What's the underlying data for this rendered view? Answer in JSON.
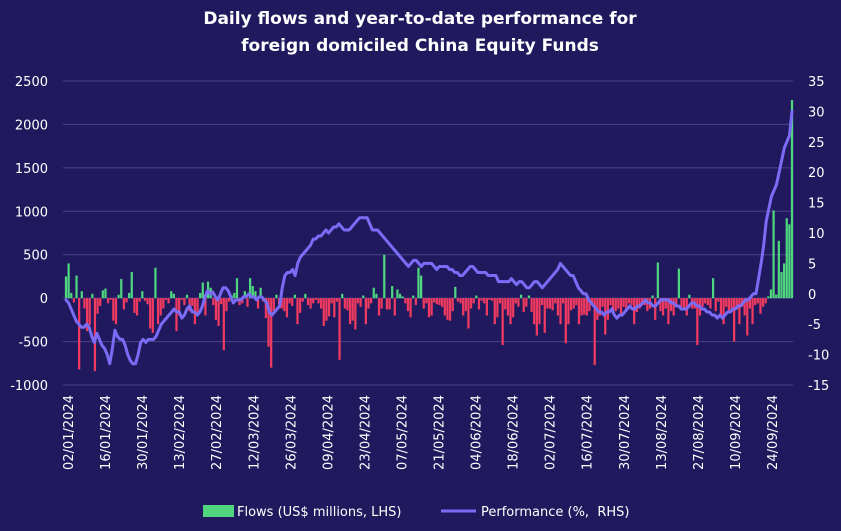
{
  "chart_data": {
    "type": "bar+line",
    "title_lines": [
      "Daily flows and year-to-date performance for",
      "foreign domiciled China Equity Funds"
    ],
    "x_tick_labels": [
      "02/01/2024",
      "16/01/2024",
      "30/01/2024",
      "13/02/2024",
      "27/02/2024",
      "12/03/2024",
      "26/03/2024",
      "09/04/2024",
      "23/04/2024",
      "07/05/2024",
      "21/05/2024",
      "04/06/2024",
      "18/06/2024",
      "02/07/2024",
      "16/07/2024",
      "30/07/2024",
      "13/08/2024",
      "27/08/2024",
      "10/09/2024",
      "24/09/2024"
    ],
    "y_left": {
      "min": -1000,
      "max": 2500,
      "ticks": [
        -1000,
        -500,
        0,
        500,
        1000,
        1500,
        2000,
        2500
      ]
    },
    "y_right": {
      "min": -15,
      "max": 35,
      "ticks": [
        -15,
        -10,
        -5,
        0,
        5,
        10,
        15,
        20,
        25,
        30,
        35
      ]
    },
    "grid": "horizontal",
    "legend_position": "bottom",
    "colors": {
      "background": "#21195e",
      "flows_positive": "#4fd67f",
      "flows_negative": "#f03a5f",
      "performance": "#7b6cf6",
      "grid": "#4a4385"
    },
    "series": [
      {
        "name": "Flows (US$ millions, LHS)",
        "type": "bar",
        "axis": "left",
        "x_start": "2024-01-02",
        "x_interval": "business day",
        "values": [
          250,
          400,
          60,
          -50,
          260,
          -820,
          80,
          -120,
          -380,
          -310,
          50,
          -840,
          -180,
          -90,
          90,
          110,
          -60,
          -20,
          -260,
          -300,
          40,
          220,
          -130,
          -50,
          60,
          300,
          -170,
          -200,
          -40,
          80,
          -30,
          -70,
          -350,
          -400,
          350,
          -300,
          -200,
          -120,
          -20,
          -60,
          80,
          50,
          -380,
          -200,
          -20,
          -80,
          40,
          -150,
          -90,
          -300,
          -180,
          60,
          180,
          -200,
          190,
          120,
          -80,
          -250,
          -320,
          -70,
          -600,
          -150,
          -40,
          30,
          60,
          230,
          -80,
          -60,
          80,
          -100,
          230,
          140,
          80,
          -120,
          120,
          -40,
          -230,
          -560,
          -800,
          -150,
          40,
          -70,
          -120,
          -150,
          -220,
          -60,
          -90,
          40,
          -300,
          -170,
          -40,
          50,
          -80,
          -120,
          -60,
          -20,
          -60,
          -120,
          -320,
          -260,
          -210,
          -60,
          -220,
          -40,
          -710,
          50,
          -120,
          -140,
          -300,
          -260,
          -360,
          -60,
          -100,
          30,
          -300,
          -120,
          -60,
          120,
          50,
          -200,
          -120,
          500,
          -130,
          -130,
          140,
          -200,
          100,
          50,
          20,
          -60,
          -150,
          -220,
          30,
          -80,
          350,
          260,
          -120,
          -60,
          -220,
          -200,
          -50,
          -70,
          -80,
          -100,
          -200,
          -250,
          -260,
          -150,
          130,
          -40,
          -60,
          -200,
          -150,
          -350,
          -120,
          -60,
          30,
          -130,
          -30,
          -60,
          -200,
          -20,
          -30,
          -300,
          -220,
          -60,
          -540,
          -130,
          -200,
          -300,
          -220,
          -60,
          -100,
          40,
          -160,
          -100,
          30,
          -160,
          -300,
          -430,
          -300,
          -80,
          -400,
          -120,
          -120,
          -140,
          -60,
          -200,
          -300,
          -60,
          -520,
          -300,
          -140,
          -120,
          -80,
          -300,
          -200,
          -190,
          -200,
          -150,
          -60,
          -770,
          -250,
          -200,
          -100,
          -420,
          -250,
          -80,
          -150,
          -150,
          -120,
          -200,
          -100,
          -130,
          -60,
          -80,
          -300,
          -160,
          -120,
          -60,
          -80,
          -150,
          -120,
          30,
          -250,
          410,
          -150,
          -200,
          -120,
          -300,
          -150,
          -200,
          -80,
          340,
          -100,
          -140,
          -200,
          40,
          -120,
          -120,
          -540,
          -200,
          -100,
          -60,
          -80,
          -120,
          230,
          -150,
          -40,
          -200,
          -300,
          -100,
          -150,
          -120,
          -500,
          -130,
          -300,
          -100,
          -200,
          -430,
          -120,
          -300,
          -80,
          -60,
          -180,
          -100,
          -60,
          20,
          100,
          1010,
          40,
          660,
          300,
          400,
          920,
          850,
          2280
        ]
      },
      {
        "name": "Performance (%,  RHS)",
        "type": "line",
        "axis": "right",
        "x_start": "2024-01-02",
        "x_interval": "business day",
        "values": [
          -1,
          -1.5,
          -2.5,
          -3.5,
          -4.5,
          -5,
          -5.5,
          -5.5,
          -5,
          -5.5,
          -7,
          -8,
          -6.5,
          -7.5,
          -8.5,
          -9,
          -10,
          -11.5,
          -9,
          -6,
          -7,
          -7.5,
          -7.5,
          -8.5,
          -10,
          -11,
          -11.5,
          -11.5,
          -10,
          -8,
          -7.5,
          -8,
          -7.5,
          -7.5,
          -7.5,
          -7,
          -6,
          -5,
          -4.5,
          -4,
          -3.5,
          -3,
          -2.5,
          -3,
          -3,
          -4,
          -3.5,
          -2.5,
          -2,
          -3,
          -3,
          -3.5,
          -3,
          -2,
          -0.5,
          0.5,
          0,
          0.3,
          -0.5,
          -1,
          0,
          1,
          1,
          0.5,
          -0.5,
          -1.5,
          -1,
          -1,
          -1,
          -0.5,
          -0.5,
          0,
          -0.5,
          -0.5,
          -1,
          -0.5,
          -0.5,
          -1,
          -1.5,
          -3,
          -3.5,
          -3,
          -2.5,
          -2,
          1,
          3,
          3.5,
          3.5,
          4,
          3,
          5,
          6,
          6.5,
          7,
          7.5,
          8,
          9,
          9,
          9.5,
          9.5,
          10,
          10.5,
          10,
          10.5,
          11,
          11,
          11.5,
          11,
          10.5,
          10.5,
          10.5,
          11,
          11.5,
          12,
          12.5,
          12.5,
          12.5,
          12.5,
          11.5,
          10.5,
          10.5,
          10.5,
          10,
          9.5,
          9,
          8.5,
          8,
          7.5,
          7,
          6.5,
          6,
          5.5,
          5,
          4.5,
          5,
          5.5,
          5.5,
          5,
          4.5,
          5,
          5,
          5,
          5,
          4.5,
          4,
          4.5,
          4.5,
          4.5,
          4.5,
          4,
          4,
          3.5,
          3.5,
          3,
          3,
          3.5,
          4,
          4.5,
          4.5,
          4,
          3.5,
          3.5,
          3.5,
          3.5,
          3,
          3,
          3,
          3,
          2,
          2,
          2,
          2,
          2,
          2.5,
          2,
          1.5,
          2,
          2,
          1.5,
          1,
          1,
          1.5,
          2,
          2,
          1.5,
          1,
          1.5,
          2,
          2.5,
          3,
          3.5,
          4,
          5,
          4.5,
          4,
          3.5,
          3,
          3,
          2,
          1,
          0.5,
          0,
          0,
          -1,
          -1.5,
          -2,
          -2.5,
          -3,
          -3,
          -3.5,
          -3,
          -3,
          -2.5,
          -3.5,
          -4,
          -3.5,
          -3.5,
          -3,
          -2.5,
          -2,
          -2.5,
          -2.5,
          -2,
          -2,
          -1.5,
          -1,
          -1.5,
          -1.5,
          -2,
          -2,
          -1.5,
          -1,
          -1,
          -1,
          -1,
          -1.5,
          -1.5,
          -2,
          -2,
          -2.5,
          -2.5,
          -2.5,
          -2,
          -1.5,
          -1.5,
          -2,
          -2,
          -2.5,
          -2.5,
          -3,
          -3,
          -3.5,
          -3.5,
          -4,
          -3.5,
          -4,
          -3.5,
          -3,
          -3,
          -2.5,
          -2.5,
          -2,
          -2,
          -1.5,
          -1,
          -1,
          -0.5,
          0,
          0,
          2.5,
          5,
          8,
          12,
          14,
          16,
          17,
          18,
          20,
          22,
          24,
          25,
          26,
          30
        ]
      }
    ]
  }
}
